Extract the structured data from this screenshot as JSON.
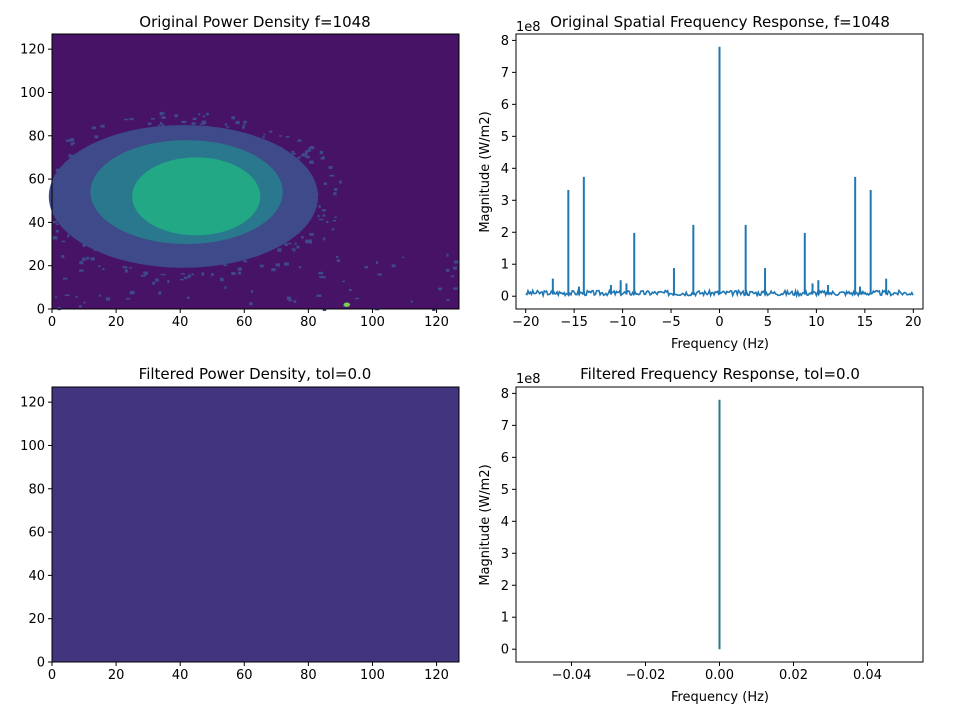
{
  "colors": {
    "viridis_0": "#471366",
    "viridis_1": "#3e4a89",
    "viridis_2": "#2a788e",
    "viridis_3": "#22a884",
    "viridis_4": "#7ad151",
    "viridis_5": "#fde725",
    "filtered_fill": "#433480",
    "line_blue": "#1f77b4",
    "filtered_line": "#1f7f8a"
  },
  "chart_data": [
    {
      "type": "heatmap",
      "title": "Original Power Density f=1048",
      "xlabel": "",
      "ylabel": "",
      "xlim": [
        0,
        127
      ],
      "ylim": [
        0,
        127
      ],
      "xticks": [
        0,
        20,
        40,
        60,
        80,
        100,
        120
      ],
      "yticks": [
        0,
        20,
        40,
        60,
        80,
        100,
        120
      ],
      "colormap": "viridis",
      "regions": [
        {
          "level": 0,
          "description": "background"
        },
        {
          "level": 1,
          "center": [
            41,
            52
          ],
          "radius": [
            42,
            33
          ]
        },
        {
          "level": 2,
          "center": [
            42,
            54
          ],
          "radius": [
            30,
            24
          ]
        },
        {
          "level": 3,
          "center": [
            45,
            52
          ],
          "radius": [
            20,
            18
          ]
        },
        {
          "level": 4,
          "center": [
            92,
            2
          ],
          "radius": [
            1,
            1
          ]
        }
      ]
    },
    {
      "type": "line",
      "title": "Original Spatial Frequency Response, f=1048",
      "xlabel": "Frequency (Hz)",
      "ylabel": "Magnitude (W/m2)",
      "y_scale_note": "1e8",
      "xlim": [
        -21,
        21
      ],
      "ylim": [
        -0.4,
        8.2
      ],
      "xticks": [
        -20,
        -15,
        -10,
        -5,
        0,
        5,
        10,
        15,
        20
      ],
      "yticks": [
        0,
        1,
        2,
        3,
        4,
        5,
        6,
        7,
        8
      ],
      "baseline": 0.1,
      "peaks": [
        {
          "x": -17.2,
          "y": 0.55
        },
        {
          "x": -15.6,
          "y": 3.32
        },
        {
          "x": -14.5,
          "y": 0.3
        },
        {
          "x": -14.0,
          "y": 3.73
        },
        {
          "x": -11.2,
          "y": 0.35
        },
        {
          "x": -10.2,
          "y": 0.5
        },
        {
          "x": -9.6,
          "y": 0.4
        },
        {
          "x": -8.8,
          "y": 1.98
        },
        {
          "x": -4.7,
          "y": 0.88
        },
        {
          "x": -2.7,
          "y": 2.23
        },
        {
          "x": 0.0,
          "y": 7.8
        },
        {
          "x": 2.7,
          "y": 2.23
        },
        {
          "x": 4.7,
          "y": 0.88
        },
        {
          "x": 8.8,
          "y": 1.98
        },
        {
          "x": 9.6,
          "y": 0.4
        },
        {
          "x": 10.2,
          "y": 0.5
        },
        {
          "x": 11.2,
          "y": 0.35
        },
        {
          "x": 14.0,
          "y": 3.73
        },
        {
          "x": 14.5,
          "y": 0.3
        },
        {
          "x": 15.6,
          "y": 3.32
        },
        {
          "x": 17.2,
          "y": 0.55
        }
      ]
    },
    {
      "type": "heatmap",
      "title": "Filtered Power Density, tol=0.0",
      "xlabel": "",
      "ylabel": "",
      "xlim": [
        0,
        127
      ],
      "ylim": [
        0,
        127
      ],
      "xticks": [
        0,
        20,
        40,
        60,
        80,
        100,
        120
      ],
      "yticks": [
        0,
        20,
        40,
        60,
        80,
        100,
        120
      ],
      "colormap": "viridis",
      "uniform": true
    },
    {
      "type": "line",
      "title": "Filtered Frequency Response, tol=0.0",
      "xlabel": "Frequency (Hz)",
      "ylabel": "Magnitude (W/m2)",
      "y_scale_note": "1e8",
      "xlim": [
        -0.055,
        0.055
      ],
      "ylim": [
        -0.4,
        8.2
      ],
      "xticks": [
        -0.04,
        -0.02,
        0.0,
        0.02,
        0.04
      ],
      "xtick_labels": [
        "−0.04",
        "−0.02",
        "0.00",
        "0.02",
        "0.04"
      ],
      "yticks": [
        0,
        1,
        2,
        3,
        4,
        5,
        6,
        7,
        8
      ],
      "segment": {
        "x": 0.0,
        "y0": 0.0,
        "y1": 7.8
      }
    }
  ]
}
